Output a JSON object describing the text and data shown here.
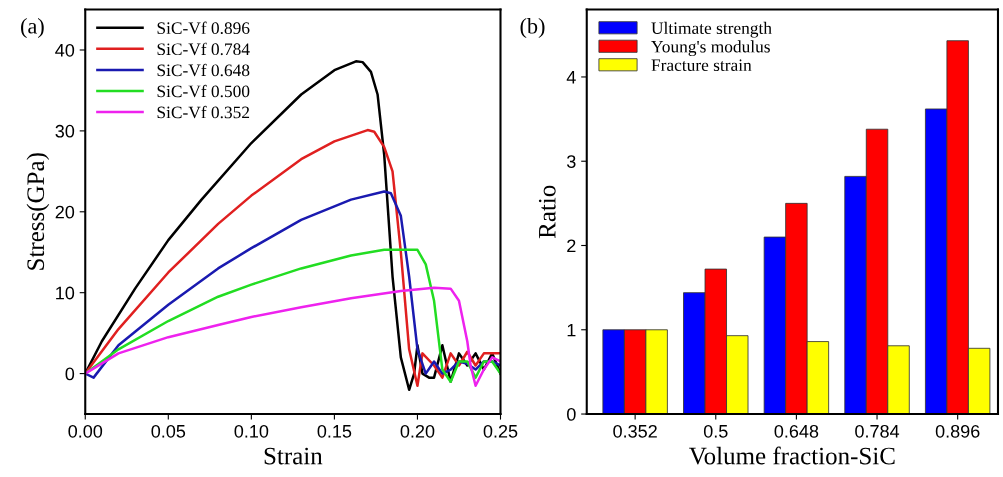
{
  "chart_data": [
    {
      "type": "line",
      "xlabel": "Strain",
      "ylabel": "Stress(GPa)",
      "annotations": [
        "(a)"
      ],
      "xlim": [
        0,
        0.25
      ],
      "ylim": [
        -5,
        45
      ],
      "xticks": [
        {
          "value": 0,
          "label": "0.00"
        },
        {
          "value": 0.05,
          "label": "0.05"
        },
        {
          "value": 0.1,
          "label": "0.10"
        },
        {
          "value": 0.15,
          "label": "0.15"
        },
        {
          "value": 0.2,
          "label": "0.20"
        },
        {
          "value": 0.25,
          "label": "0.25"
        }
      ],
      "yticks": [
        0,
        10,
        20,
        30,
        40
      ],
      "legend": "top left",
      "grid": false,
      "series": [
        {
          "name": "SiC-Vf 0.896",
          "color": "#000000",
          "x": [
            0,
            0.01,
            0.03,
            0.05,
            0.07,
            0.1,
            0.13,
            0.15,
            0.163,
            0.167,
            0.172,
            0.176,
            0.18,
            0.185,
            0.19,
            0.195,
            0.198,
            0.2,
            0.203,
            0.207,
            0.21,
            0.215,
            0.22,
            0.225,
            0.23,
            0.235,
            0.24,
            0.245,
            0.25
          ],
          "values": [
            0,
            4,
            10.5,
            16.5,
            21.5,
            28.5,
            34.5,
            37.5,
            38.6,
            38.5,
            37.3,
            34.5,
            27,
            12,
            2,
            -2,
            0,
            3.5,
            0,
            -0.5,
            -0.5,
            3.5,
            -1,
            2.5,
            1,
            2.5,
            0.5,
            2.5,
            0
          ]
        },
        {
          "name": "SiC-Vf 0.784",
          "color": "#e02020",
          "x": [
            0,
            0.02,
            0.05,
            0.08,
            0.1,
            0.13,
            0.15,
            0.17,
            0.174,
            0.18,
            0.185,
            0.19,
            0.195,
            0.2,
            0.203,
            0.21,
            0.215,
            0.22,
            0.225,
            0.23,
            0.235,
            0.24,
            0.245,
            0.25
          ],
          "values": [
            0,
            5.5,
            12.5,
            18.5,
            22,
            26.5,
            28.7,
            30.1,
            29.9,
            28,
            25,
            15,
            3,
            -1.5,
            2.5,
            1,
            -0.5,
            2.5,
            1,
            2.7,
            1,
            2.5,
            2.5,
            2.5
          ]
        },
        {
          "name": "SiC-Vf 0.648",
          "color": "#1a1ab0",
          "x": [
            0,
            0.005,
            0.02,
            0.05,
            0.08,
            0.1,
            0.13,
            0.16,
            0.18,
            0.184,
            0.19,
            0.195,
            0.2,
            0.205,
            0.21,
            0.215,
            0.22,
            0.225,
            0.23,
            0.235,
            0.24,
            0.245,
            0.25
          ],
          "values": [
            0,
            -0.5,
            3.5,
            8.5,
            13,
            15.5,
            19,
            21.5,
            22.5,
            22.3,
            19.5,
            12,
            3,
            0,
            1.5,
            0,
            0.5,
            1.5,
            1.2,
            0.5,
            1.5,
            1.5,
            1
          ]
        },
        {
          "name": "SiC-Vf 0.500",
          "color": "#22dd22",
          "x": [
            0,
            0.02,
            0.05,
            0.08,
            0.1,
            0.13,
            0.16,
            0.18,
            0.2,
            0.205,
            0.21,
            0.215,
            0.22,
            0.225,
            0.23,
            0.235,
            0.24,
            0.245,
            0.25
          ],
          "values": [
            0,
            3,
            6.5,
            9.5,
            11,
            13,
            14.6,
            15.3,
            15.3,
            13.5,
            9,
            0.5,
            -1,
            1.5,
            1.5,
            -0.5,
            1.5,
            1.5,
            0
          ]
        },
        {
          "name": "SiC-Vf 0.352",
          "color": "#ee22ee",
          "x": [
            0,
            0.02,
            0.05,
            0.08,
            0.1,
            0.13,
            0.16,
            0.19,
            0.21,
            0.22,
            0.225,
            0.23,
            0.232,
            0.235,
            0.24,
            0.245,
            0.25
          ],
          "values": [
            0,
            2.5,
            4.5,
            6,
            7,
            8.2,
            9.3,
            10.2,
            10.6,
            10.5,
            9,
            4,
            1,
            -1.5,
            0.5,
            2,
            1.5
          ]
        }
      ]
    },
    {
      "type": "bar",
      "xlabel": "Volume fraction-SiC",
      "ylabel": "Ratio",
      "annotations": [
        "(b)"
      ],
      "categories": [
        "0.352",
        "0.5",
        "0.648",
        "0.784",
        "0.896"
      ],
      "ylim": [
        0,
        4.8
      ],
      "yticks": [
        0,
        1,
        2,
        3,
        4
      ],
      "legend": "top left",
      "grid": false,
      "series": [
        {
          "name": "Ultimate strength",
          "color": "#0000ff",
          "values": [
            1,
            1.44,
            2.1,
            2.82,
            3.62
          ]
        },
        {
          "name": "Young's modulus",
          "color": "#ff0000",
          "values": [
            1,
            1.72,
            2.5,
            3.38,
            4.43
          ]
        },
        {
          "name": "Fracture strain",
          "color": "#ffff00",
          "values": [
            1,
            0.93,
            0.86,
            0.81,
            0.78
          ]
        }
      ]
    }
  ]
}
